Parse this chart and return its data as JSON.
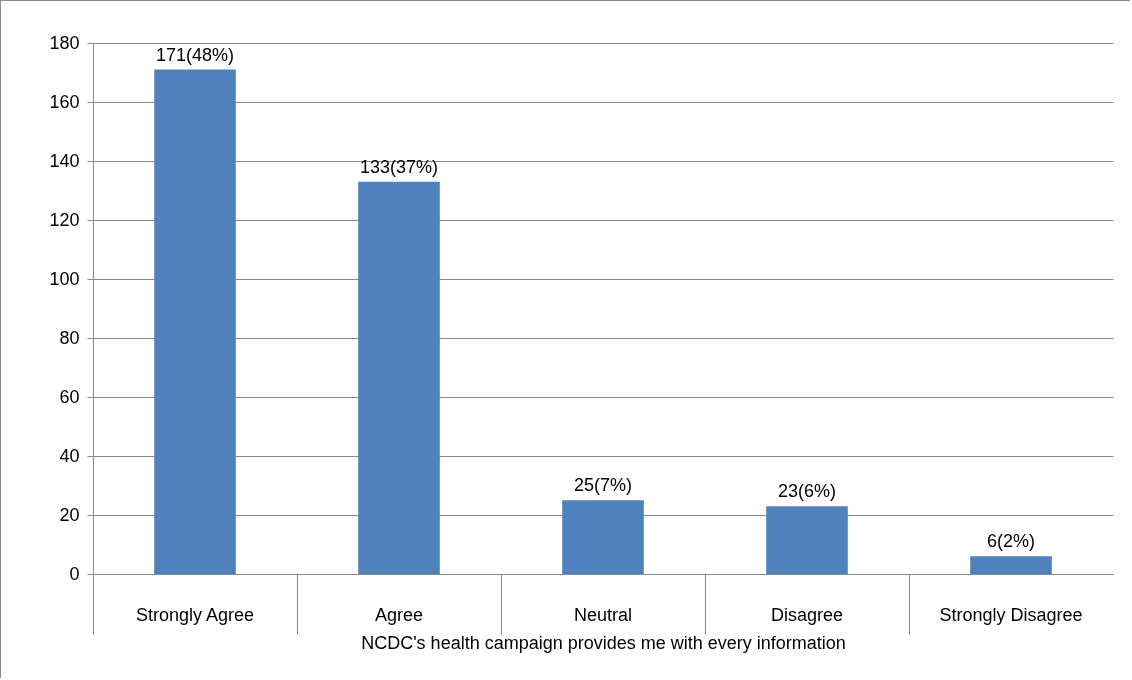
{
  "chart_data": {
    "type": "bar",
    "xlabel": "NCDC's health campaign provides me with every information",
    "categories": [
      "Strongly Agree",
      "Agree",
      "Neutral",
      "Disagree",
      "Strongly Disagree"
    ],
    "values": [
      171,
      133,
      25,
      23,
      6
    ],
    "value_labels": [
      "171(48%)",
      "133(37%)",
      "25(7%)",
      "23(6%)",
      "6(2%)"
    ],
    "color": "#4f81bd",
    "ylim": [
      0,
      180
    ],
    "yticks": [
      0,
      20,
      40,
      60,
      80,
      100,
      120,
      140,
      160,
      180
    ],
    "grid": "y"
  }
}
